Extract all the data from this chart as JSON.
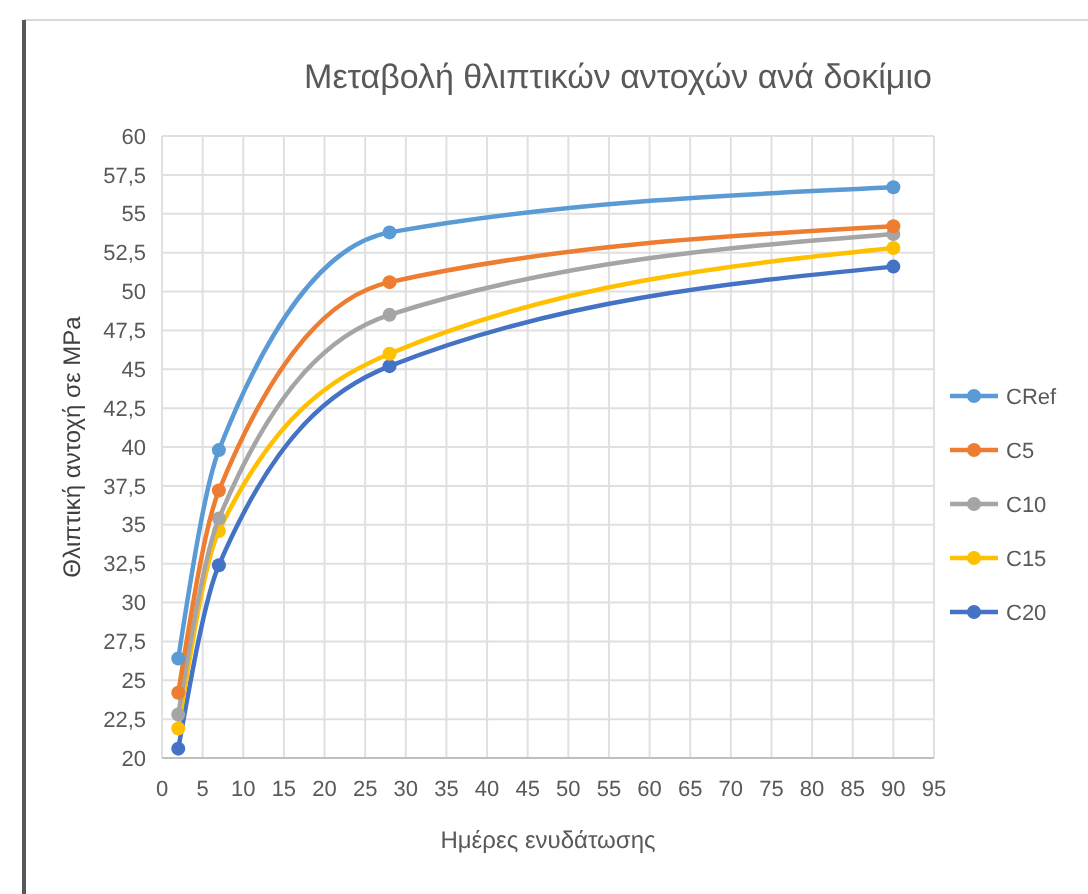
{
  "chart_data": {
    "type": "line",
    "title": "Μεταβολή θλιπτικών αντοχών ανά δοκίμιο",
    "xlabel": "Ημέρες ενυδάτωσης",
    "ylabel": "Θλιπτική αντοχή σε MPa",
    "x": [
      2,
      7,
      28,
      90
    ],
    "series": [
      {
        "name": "CRef",
        "color": "#5b9bd5",
        "values": [
          26.4,
          39.8,
          53.8,
          56.7
        ]
      },
      {
        "name": "C5",
        "color": "#ed7d31",
        "values": [
          24.2,
          37.2,
          50.6,
          54.2
        ]
      },
      {
        "name": "C10",
        "color": "#a5a5a5",
        "values": [
          22.8,
          35.4,
          48.5,
          53.7
        ]
      },
      {
        "name": "C15",
        "color": "#ffc000",
        "values": [
          21.9,
          34.6,
          46.0,
          52.8
        ]
      },
      {
        "name": "C20",
        "color": "#4472c4",
        "values": [
          20.6,
          32.4,
          45.2,
          51.6
        ]
      }
    ],
    "xlim": [
      0,
      95
    ],
    "xticks": [
      0,
      5,
      10,
      15,
      20,
      25,
      30,
      35,
      40,
      45,
      50,
      55,
      60,
      65,
      70,
      75,
      80,
      85,
      90,
      95
    ],
    "ylim": [
      20,
      60
    ],
    "yticks": [
      20,
      {
        "value": 22.5,
        "label": "22,5"
      },
      25,
      {
        "value": 27.5,
        "label": "27,5"
      },
      30,
      {
        "value": 32.5,
        "label": "32,5"
      },
      35,
      {
        "value": 37.5,
        "label": "37,5"
      },
      40,
      {
        "value": 42.5,
        "label": "42,5"
      },
      45,
      {
        "value": 47.5,
        "label": "47,5"
      },
      50,
      {
        "value": 52.5,
        "label": "52,5"
      },
      55,
      {
        "value": 57.5,
        "label": "57,5"
      },
      60
    ],
    "grid": true,
    "legend": "right",
    "marker": "circle",
    "line_style": "solid"
  }
}
